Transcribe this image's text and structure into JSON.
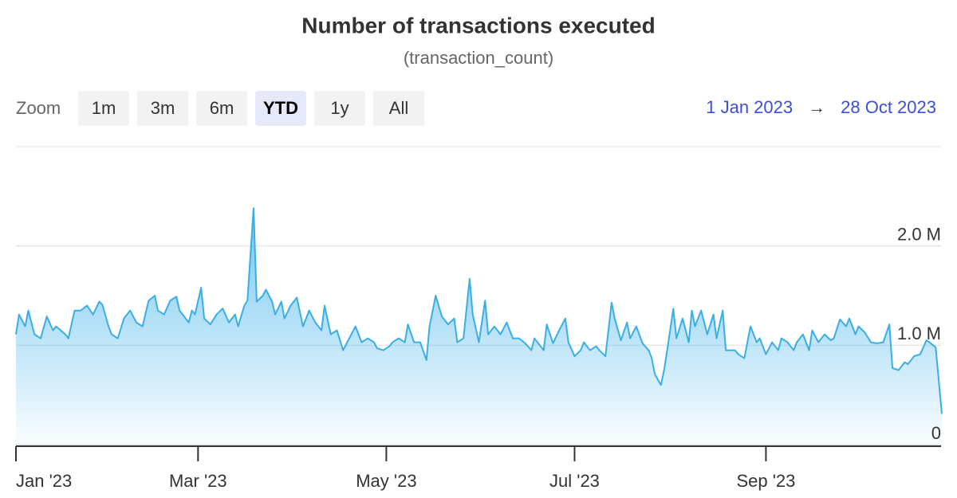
{
  "chart_data": {
    "type": "area",
    "title": "Number of transactions executed",
    "subtitle": "(transaction_count)",
    "range_selector": {
      "label": "Zoom",
      "buttons": [
        "1m",
        "3m",
        "6m",
        "YTD",
        "1y",
        "All"
      ],
      "selected": "YTD"
    },
    "date_range": {
      "from": "1 Jan 2023",
      "separator": "→",
      "to": "28 Oct 2023"
    },
    "x": [
      "2023-01-01",
      "2023-01-02",
      "2023-01-04",
      "2023-01-05",
      "2023-01-07",
      "2023-01-09",
      "2023-01-11",
      "2023-01-13",
      "2023-01-14",
      "2023-01-17",
      "2023-01-18",
      "2023-01-20",
      "2023-01-22",
      "2023-01-24",
      "2023-01-26",
      "2023-01-28",
      "2023-01-29",
      "2023-01-31",
      "2023-02-01",
      "2023-02-03",
      "2023-02-05",
      "2023-02-06",
      "2023-02-07",
      "2023-02-09",
      "2023-02-11",
      "2023-02-13",
      "2023-02-15",
      "2023-02-16",
      "2023-02-18",
      "2023-02-20",
      "2023-02-22",
      "2023-02-23",
      "2023-02-26",
      "2023-02-27",
      "2023-02-28",
      "2023-03-02",
      "2023-03-03",
      "2023-03-05",
      "2023-03-07",
      "2023-03-09",
      "2023-03-11",
      "2023-03-13",
      "2023-03-14",
      "2023-03-16",
      "2023-03-17",
      "2023-03-19",
      "2023-03-20",
      "2023-03-22",
      "2023-03-23",
      "2023-03-25",
      "2023-03-26",
      "2023-03-28",
      "2023-03-29",
      "2023-03-31",
      "2023-04-02",
      "2023-04-04",
      "2023-04-06",
      "2023-04-08",
      "2023-04-10",
      "2023-04-11",
      "2023-04-13",
      "2023-04-15",
      "2023-04-17",
      "2023-04-19",
      "2023-04-21",
      "2023-04-23",
      "2023-04-25",
      "2023-04-27",
      "2023-04-28",
      "2023-04-30",
      "2023-05-02",
      "2023-05-03",
      "2023-05-05",
      "2023-05-07",
      "2023-05-08",
      "2023-05-10",
      "2023-05-12",
      "2023-05-14",
      "2023-05-15",
      "2023-05-17",
      "2023-05-19",
      "2023-05-21",
      "2023-05-23",
      "2023-05-24",
      "2023-05-26",
      "2023-05-28",
      "2023-05-29",
      "2023-05-31",
      "2023-06-02",
      "2023-06-03",
      "2023-06-05",
      "2023-06-07",
      "2023-06-09",
      "2023-06-11",
      "2023-06-13",
      "2023-06-15",
      "2023-06-17",
      "2023-06-18",
      "2023-06-21",
      "2023-06-22",
      "2023-06-24",
      "2023-06-26",
      "2023-06-28",
      "2023-06-29",
      "2023-07-01",
      "2023-07-03",
      "2023-07-04",
      "2023-07-06",
      "2023-07-08",
      "2023-07-09",
      "2023-07-11",
      "2023-07-13",
      "2023-07-14",
      "2023-07-16",
      "2023-07-18",
      "2023-07-19",
      "2023-07-21",
      "2023-07-23",
      "2023-07-25",
      "2023-07-26",
      "2023-07-27",
      "2023-07-29",
      "2023-07-30",
      "2023-07-31",
      "2023-08-02",
      "2023-08-03",
      "2023-08-05",
      "2023-08-07",
      "2023-08-08",
      "2023-08-09",
      "2023-08-11",
      "2023-08-13",
      "2023-08-15",
      "2023-08-16",
      "2023-08-18",
      "2023-08-19",
      "2023-08-22",
      "2023-08-23",
      "2023-08-25",
      "2023-08-27",
      "2023-08-29",
      "2023-08-30",
      "2023-09-01",
      "2023-09-03",
      "2023-09-05",
      "2023-09-06",
      "2023-09-08",
      "2023-09-10",
      "2023-09-11",
      "2023-09-13",
      "2023-09-15",
      "2023-09-16",
      "2023-09-18",
      "2023-09-20",
      "2023-09-22",
      "2023-09-23",
      "2023-09-25",
      "2023-09-27",
      "2023-09-28",
      "2023-09-30",
      "2023-10-01",
      "2023-10-03",
      "2023-10-05",
      "2023-10-07",
      "2023-10-09",
      "2023-10-11",
      "2023-10-12",
      "2023-10-14",
      "2023-10-16",
      "2023-10-17",
      "2023-10-19",
      "2023-10-21",
      "2023-10-23",
      "2023-10-24",
      "2023-10-26",
      "2023-10-28"
    ],
    "series": [
      {
        "color": "#3aaee6",
        "values": [
          1110000,
          1310000,
          1190000,
          1350000,
          1110000,
          1070000,
          1290000,
          1150000,
          1190000,
          1110000,
          1070000,
          1350000,
          1350000,
          1400000,
          1310000,
          1440000,
          1410000,
          1190000,
          1110000,
          1070000,
          1270000,
          1310000,
          1350000,
          1230000,
          1190000,
          1450000,
          1500000,
          1350000,
          1310000,
          1450000,
          1490000,
          1350000,
          1230000,
          1350000,
          1310000,
          1580000,
          1270000,
          1210000,
          1310000,
          1370000,
          1230000,
          1310000,
          1190000,
          1400000,
          1450000,
          2380000,
          1440000,
          1500000,
          1560000,
          1440000,
          1310000,
          1440000,
          1270000,
          1400000,
          1480000,
          1190000,
          1350000,
          1230000,
          1150000,
          1400000,
          1110000,
          1150000,
          950000,
          1070000,
          1190000,
          1030000,
          1070000,
          1030000,
          970000,
          950000,
          990000,
          1030000,
          1070000,
          1030000,
          1210000,
          1030000,
          1030000,
          850000,
          1190000,
          1500000,
          1290000,
          1210000,
          1270000,
          1030000,
          1070000,
          1670000,
          1310000,
          1030000,
          1450000,
          1110000,
          1190000,
          1110000,
          1230000,
          1070000,
          1070000,
          1020000,
          950000,
          1070000,
          950000,
          1210000,
          1020000,
          1150000,
          1270000,
          1030000,
          890000,
          950000,
          1030000,
          950000,
          990000,
          950000,
          890000,
          1430000,
          1270000,
          1050000,
          1230000,
          1070000,
          1190000,
          1020000,
          950000,
          870000,
          710000,
          600000,
          750000,
          950000,
          1370000,
          1070000,
          1270000,
          1030000,
          1350000,
          1190000,
          1350000,
          1110000,
          1310000,
          1070000,
          1350000,
          950000,
          950000,
          910000,
          870000,
          1190000,
          1030000,
          1070000,
          910000,
          1030000,
          950000,
          1070000,
          1030000,
          950000,
          1030000,
          1110000,
          950000,
          1150000,
          1030000,
          1110000,
          1050000,
          1070000,
          1260000,
          1190000,
          1270000,
          1110000,
          1190000,
          1130000,
          1030000,
          1020000,
          1030000,
          1210000,
          770000,
          750000,
          830000,
          810000,
          890000,
          910000,
          1050000,
          1030000,
          980000,
          310000
        ]
      }
    ],
    "xlim": [
      "2023-01-01",
      "2023-10-28"
    ],
    "xticks": [
      {
        "value": "2023-01-01",
        "label": "Jan '23"
      },
      {
        "value": "2023-03-01",
        "label": "Mar '23"
      },
      {
        "value": "2023-05-01",
        "label": "May '23"
      },
      {
        "value": "2023-07-01",
        "label": "Jul '23"
      },
      {
        "value": "2023-09-01",
        "label": "Sep '23"
      }
    ],
    "ylim": [
      0,
      3000000
    ],
    "yticks": [
      0,
      {
        "value": 1000000,
        "label": "1.0 M"
      },
      {
        "value": 2000000,
        "label": "2.0 M"
      }
    ],
    "grid": true
  }
}
